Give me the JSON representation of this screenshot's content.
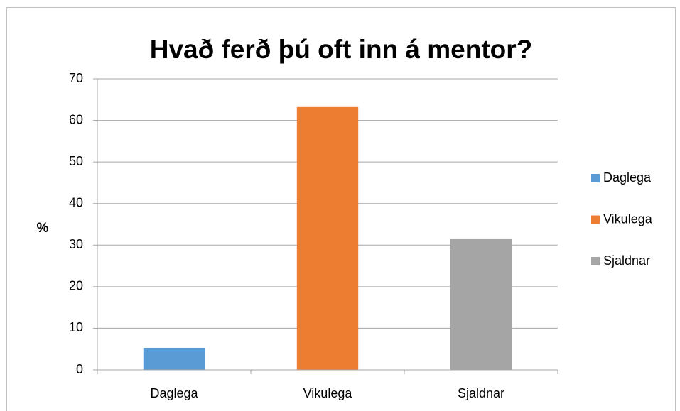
{
  "chart_data": {
    "type": "bar",
    "title": "Hvað ferð þú oft inn á mentor?",
    "y_label": "%",
    "categories": [
      "Daglega",
      "Vikulega",
      "Sjaldnar"
    ],
    "values": [
      5.3,
      63.2,
      31.6
    ],
    "colors": [
      "#5b9bd5",
      "#ed7d31",
      "#a5a5a5"
    ],
    "ylim": [
      0,
      70
    ],
    "yticks": [
      0,
      10,
      20,
      30,
      40,
      50,
      60,
      70
    ],
    "grid": true,
    "legend": "right"
  }
}
